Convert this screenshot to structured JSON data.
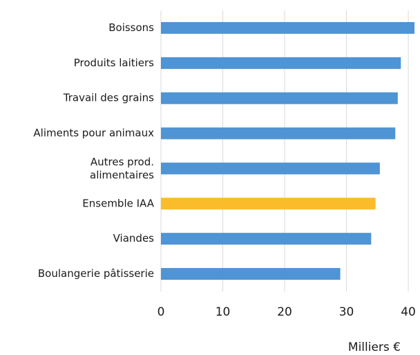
{
  "chart_data": {
    "type": "bar",
    "orientation": "horizontal",
    "categories": [
      "Boissons",
      "Produits laitiers",
      "Travail des grains",
      "Aliments pour animaux",
      "Autres prod.\nalimentaires",
      "Ensemble IAA",
      "Viandes",
      "Boulangerie pâtisserie"
    ],
    "values": [
      41,
      38.8,
      38.3,
      37.9,
      35.4,
      34.7,
      34.0,
      29.0
    ],
    "colors": [
      "#4f94d4",
      "#4f94d4",
      "#4f94d4",
      "#4f94d4",
      "#4f94d4",
      "#fbbc2c",
      "#4f94d4",
      "#4f94d4"
    ],
    "xlim": [
      0,
      41
    ],
    "xticks": [
      0,
      10,
      20,
      30,
      40
    ],
    "grid": true,
    "x_label": "Milliers €"
  }
}
